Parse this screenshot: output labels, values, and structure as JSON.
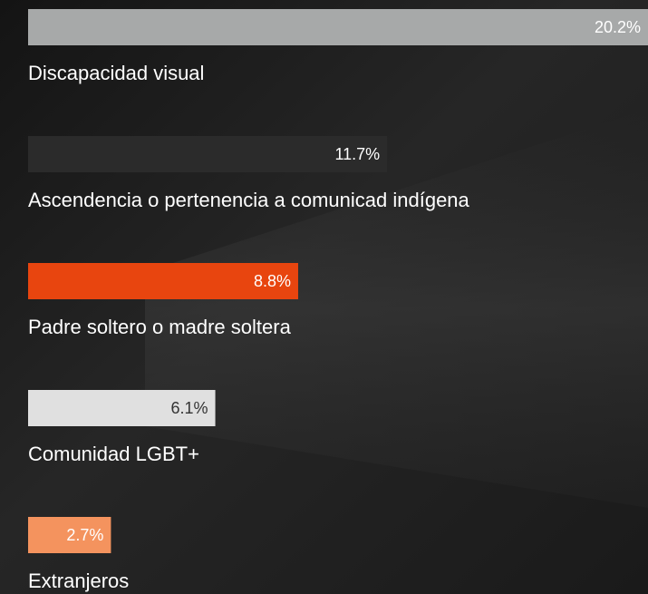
{
  "chart_data": {
    "type": "bar",
    "orientation": "horizontal",
    "categories": [
      "Discapacidad visual",
      "Ascendencia o pertenencia a comunicad indígena",
      "Padre soltero o madre soltera",
      "Comunidad LGBT+",
      "Extranjeros"
    ],
    "values": [
      20.2,
      11.7,
      8.8,
      6.1,
      2.7
    ],
    "value_labels": [
      "20.2%",
      "11.7%",
      "8.8%",
      "6.1%",
      "2.7%"
    ],
    "colors": [
      "#a7a9a9",
      "#2b2b2b",
      "#e8450f",
      "#e0e0e0",
      "#f4935e"
    ],
    "label_colors": [
      "#ffffff",
      "#ffffff",
      "#ffffff",
      "#333333",
      "#ffffff"
    ]
  }
}
